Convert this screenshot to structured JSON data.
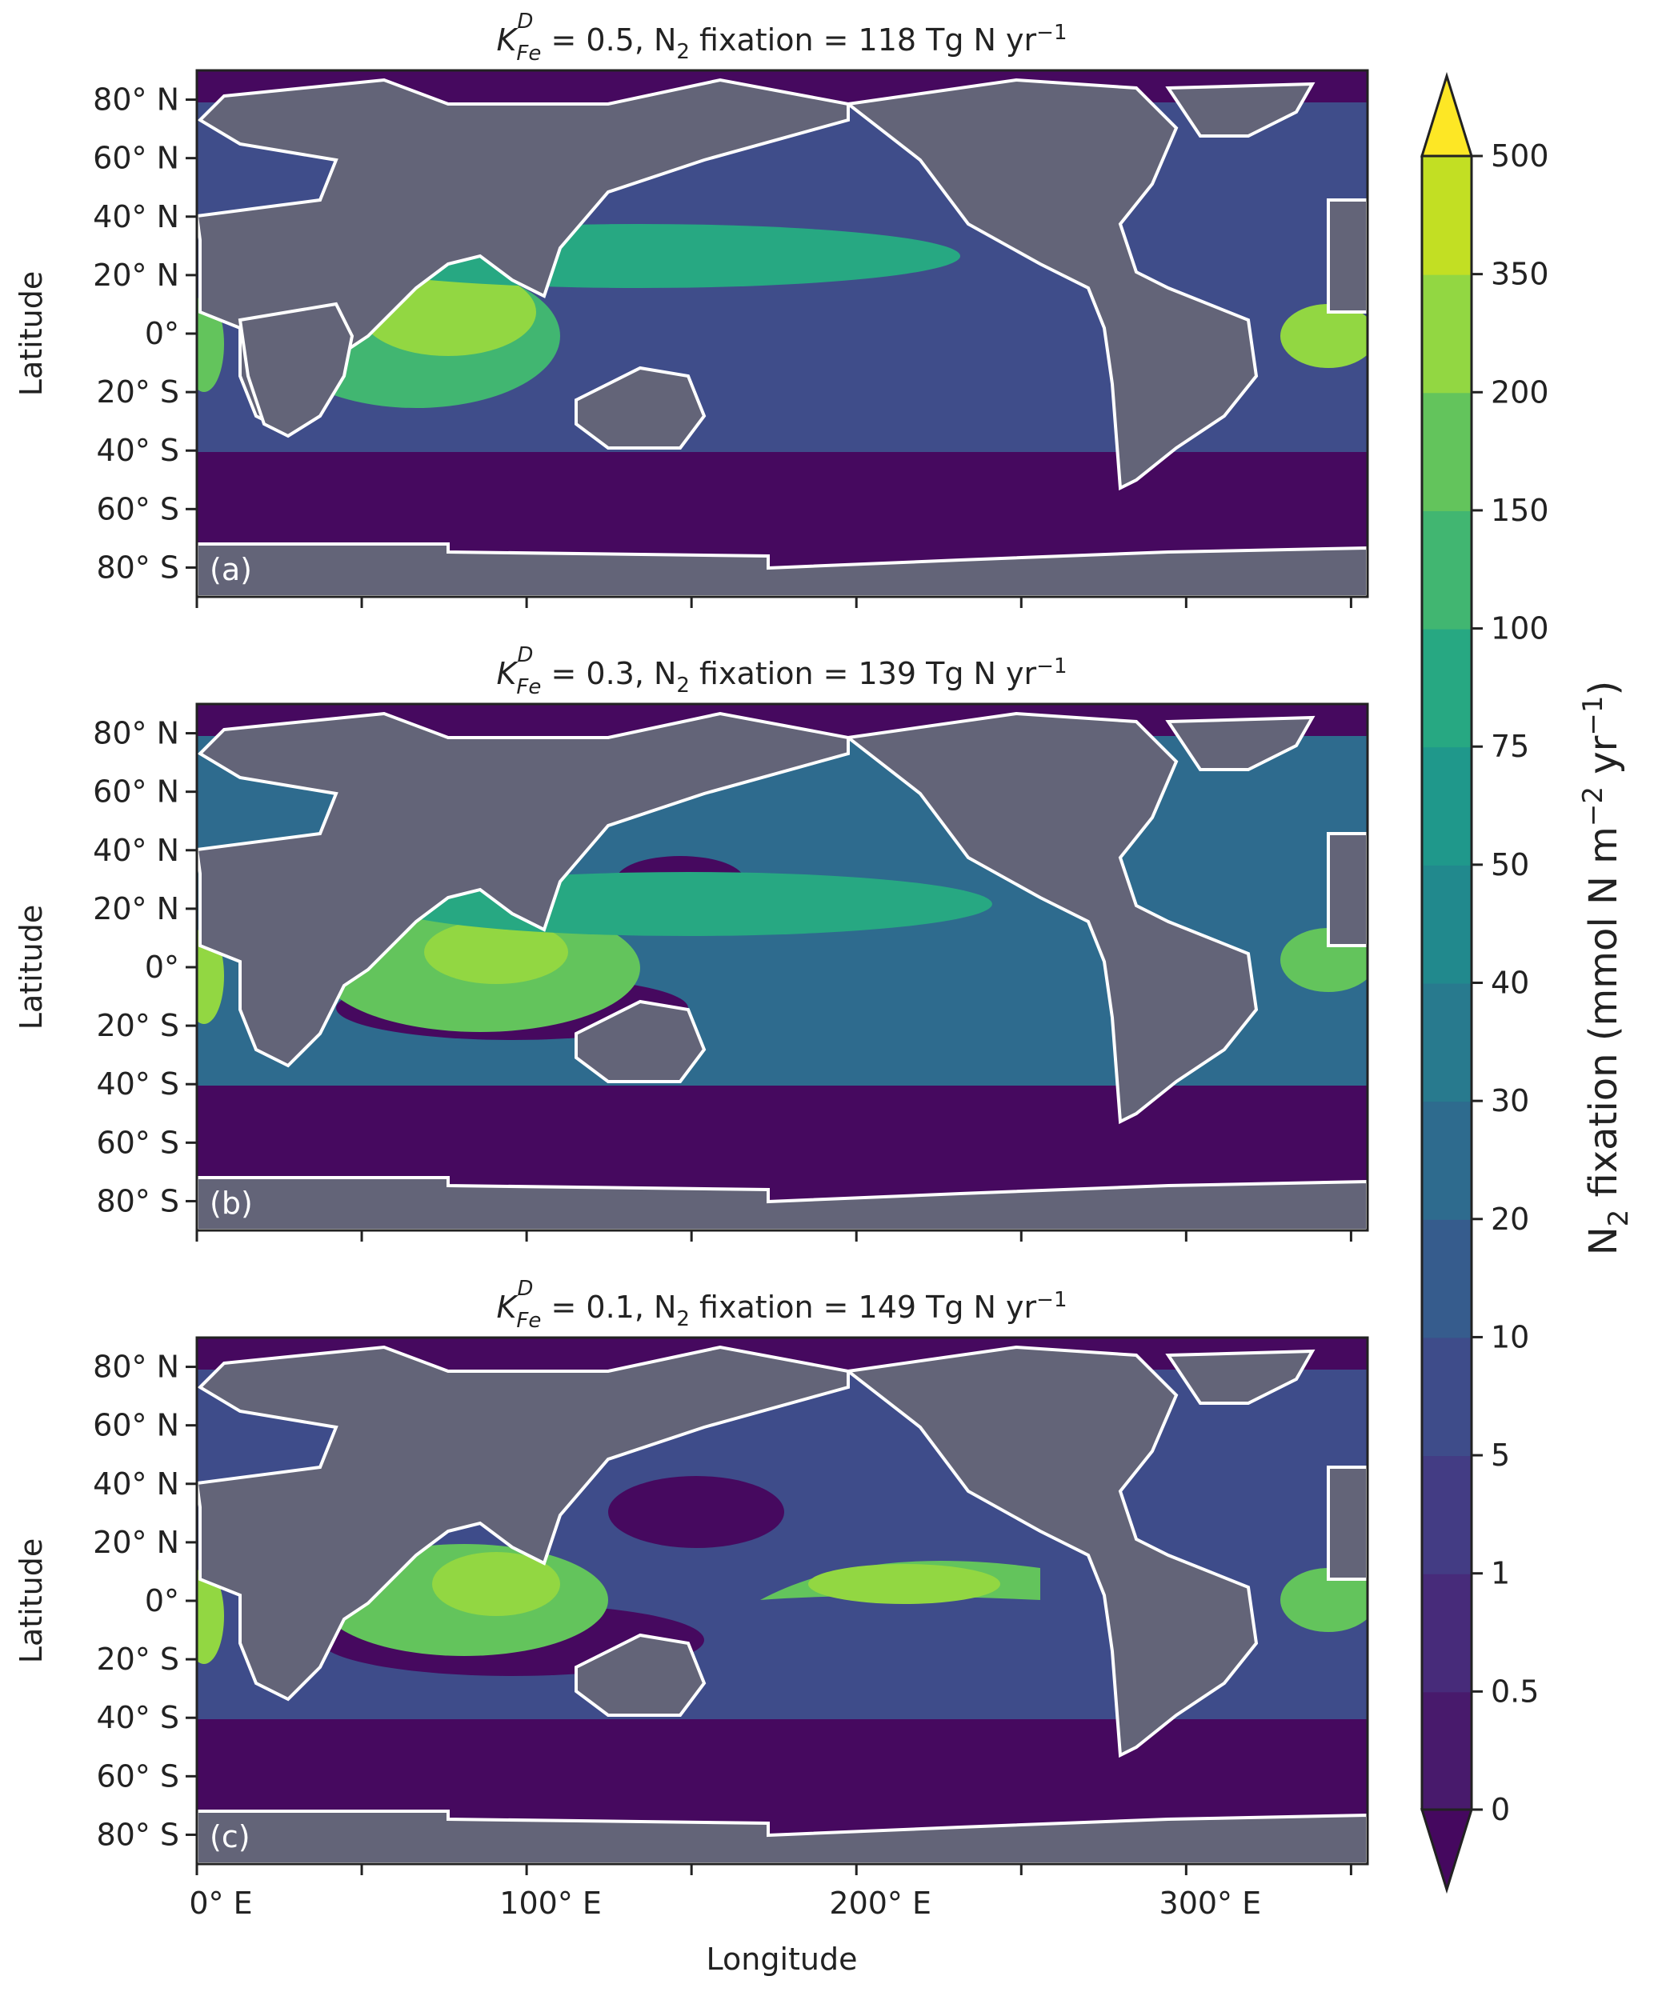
{
  "chart_data": {
    "type": "heatmap",
    "xlabel": "Longitude",
    "ylabel": "Latitude",
    "xlim": [
      0,
      355
    ],
    "ylim": [
      -90,
      90
    ],
    "xticks": [
      {
        "value": 0,
        "label": "0° E"
      },
      {
        "value": 50,
        "label": ""
      },
      {
        "value": 100,
        "label": "100° E"
      },
      {
        "value": 150,
        "label": ""
      },
      {
        "value": 200,
        "label": "200° E"
      },
      {
        "value": 250,
        "label": ""
      },
      {
        "value": 300,
        "label": "300° E"
      },
      {
        "value": 350,
        "label": ""
      }
    ],
    "yticks": [
      {
        "value": 80,
        "label": "80° N"
      },
      {
        "value": 60,
        "label": "60° N"
      },
      {
        "value": 40,
        "label": "40° N"
      },
      {
        "value": 20,
        "label": "20° N"
      },
      {
        "value": 0,
        "label": "0°"
      },
      {
        "value": -20,
        "label": "20° S"
      },
      {
        "value": -40,
        "label": "40° S"
      },
      {
        "value": -60,
        "label": "60° S"
      },
      {
        "value": -80,
        "label": "80° S"
      }
    ],
    "panels": [
      {
        "label": "(a)",
        "kfe": "0.5",
        "fixation": "118",
        "title_k": "K",
        "title_sub": "Fe",
        "title_sup": "D",
        "title_rest_1": " = 0.5, N",
        "title_n_sub": "2",
        "title_rest_2": " fixation = 118 Tg N yr",
        "title_exp": "−1"
      },
      {
        "label": "(b)",
        "kfe": "0.3",
        "fixation": "139",
        "title_k": "K",
        "title_sub": "Fe",
        "title_sup": "D",
        "title_rest_1": " = 0.3, N",
        "title_n_sub": "2",
        "title_rest_2": " fixation = 139 Tg N yr",
        "title_exp": "−1"
      },
      {
        "label": "(c)",
        "kfe": "0.1",
        "fixation": "149",
        "title_k": "K",
        "title_sub": "Fe",
        "title_sup": "D",
        "title_rest_1": " = 0.1, N",
        "title_n_sub": "2",
        "title_rest_2": " fixation = 149 Tg N yr",
        "title_exp": "−1"
      }
    ],
    "colorbar": {
      "levels": [
        "0",
        "0.5",
        "1",
        "5",
        "10",
        "20",
        "30",
        "40",
        "50",
        "75",
        "100",
        "150",
        "200",
        "350",
        "500"
      ],
      "colors": [
        "#45085f",
        "#481a6c",
        "#472b7a",
        "#433c84",
        "#3e4c8a",
        "#365c8d",
        "#2e6b8e",
        "#287a8e",
        "#21898d",
        "#1f988b",
        "#27a882",
        "#41b671",
        "#63c45c",
        "#92d742",
        "#c2df23",
        "#fde725"
      ],
      "extend": "both",
      "label_main": "N",
      "label_sub": "2",
      "label_mid": " fixation (mmol N m",
      "label_exp1": "−2",
      "label_mid2": " yr",
      "label_exp2": "−1",
      "label_end": ")"
    },
    "land_color": "#636478",
    "coast_color": "#ffffff"
  }
}
